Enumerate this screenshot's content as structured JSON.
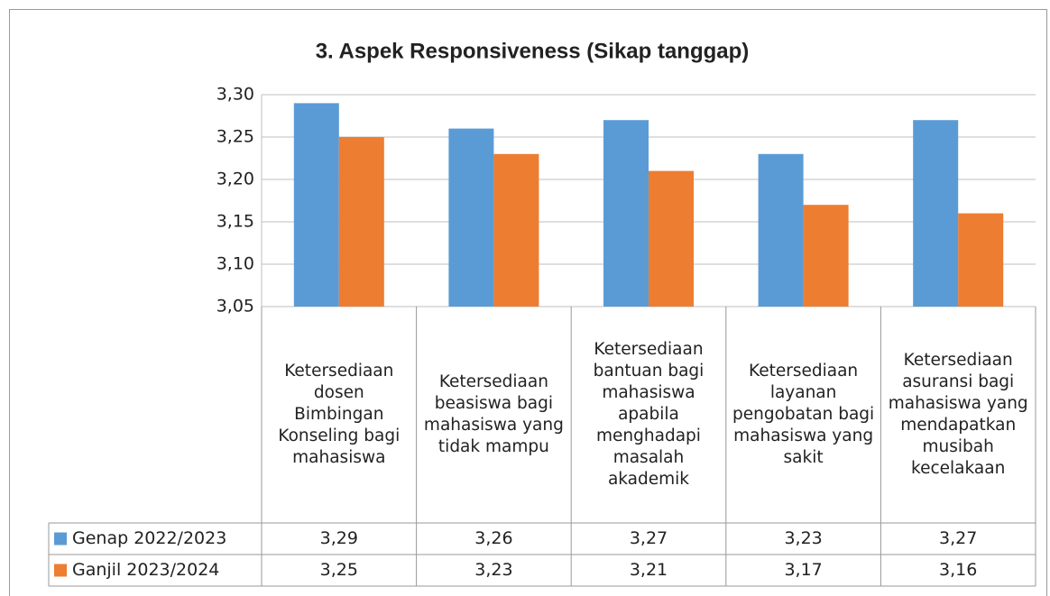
{
  "chart_data": {
    "type": "bar",
    "title": "3. Aspek Responsiveness (Sikap tanggap)",
    "categories": [
      "Ketersediaan dosen Bimbingan Konseling bagi mahasiswa",
      "Ketersediaan beasiswa bagi mahasiswa yang tidak mampu",
      "Ketersediaan bantuan bagi mahasiswa apabila menghadapi masalah akademik",
      "Ketersediaan layanan pengobatan bagi mahasiswa yang sakit",
      "Ketersediaan asuransi bagi mahasiswa yang mendapatkan musibah kecelakaan"
    ],
    "series": [
      {
        "name": "Genap 2022/2023",
        "color": "#5b9bd5",
        "values": [
          3.29,
          3.26,
          3.27,
          3.23,
          3.27
        ],
        "value_labels": [
          "3,29",
          "3,26",
          "3,27",
          "3,23",
          "3,27"
        ]
      },
      {
        "name": "Ganjil 2023/2024",
        "color": "#ed7d31",
        "values": [
          3.25,
          3.23,
          3.21,
          3.17,
          3.16
        ],
        "value_labels": [
          "3,25",
          "3,23",
          "3,21",
          "3,17",
          "3,16"
        ]
      }
    ],
    "ylim": [
      3.05,
      3.3
    ],
    "yticks": [
      {
        "value": 3.05,
        "label": "3,05"
      },
      {
        "value": 3.1,
        "label": "3,10"
      },
      {
        "value": 3.15,
        "label": "3,15"
      },
      {
        "value": 3.2,
        "label": "3,20"
      },
      {
        "value": 3.25,
        "label": "3,25"
      },
      {
        "value": 3.3,
        "label": "3,30"
      }
    ],
    "grid": true
  }
}
